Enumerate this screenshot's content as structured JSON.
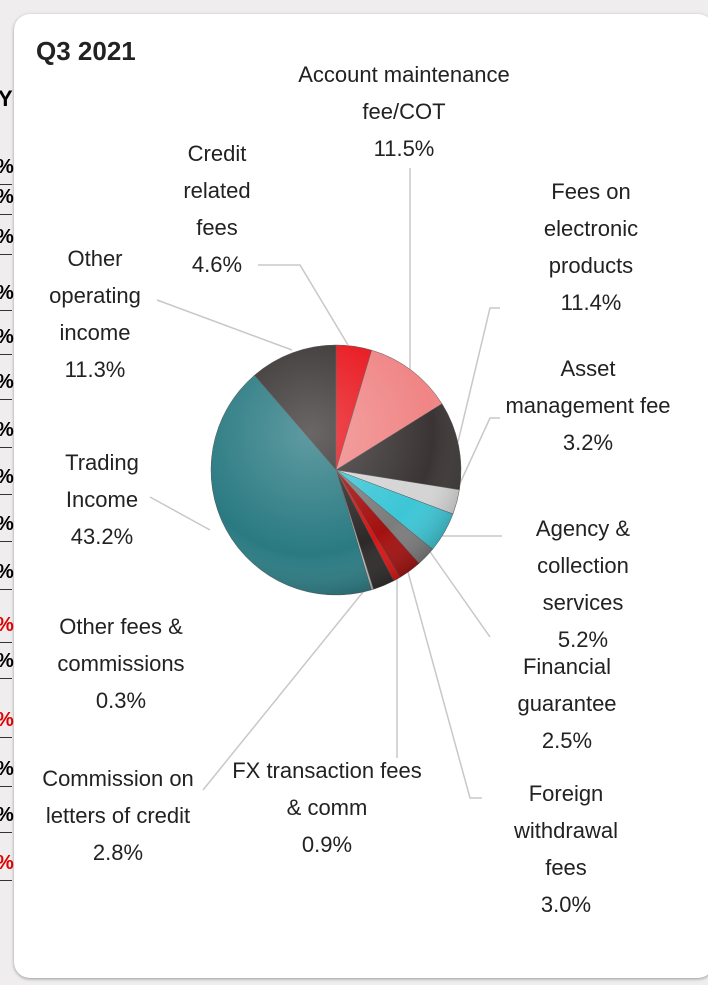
{
  "chart_data": {
    "type": "pie",
    "title": "Q3 2021",
    "categories": [
      "Credit related fees",
      "Account maintenance fee/COT",
      "Fees on electronic products",
      "Asset management fee",
      "Agency & collection services",
      "Financial guarantee",
      "Foreign withdrawal fees",
      "FX transaction fees & comm",
      "Commission on letters of credit",
      "Other fees & commissions",
      "Trading Income",
      "Other operating income"
    ],
    "values": [
      4.6,
      11.5,
      11.4,
      3.2,
      5.2,
      2.5,
      3.0,
      0.9,
      2.8,
      0.3,
      43.2,
      11.3
    ],
    "value_labels": [
      "4.6%",
      "11.5%",
      "11.4%",
      "3.2%",
      "5.2%",
      "2.5%",
      "3.0%",
      "0.9%",
      "2.8%",
      "0.3%",
      "43.2%",
      "11.3%"
    ],
    "colors": [
      "#e8151c",
      "#f08585",
      "#3a3434",
      "#d4d4d4",
      "#3cc6d6",
      "#7c7c7c",
      "#a3100f",
      "#e01111",
      "#2d2929",
      "#bdbdbd",
      "#2a7a82",
      "#3a3434"
    ]
  },
  "left_column": {
    "header": "Y",
    "cells": [
      {
        "text": "%",
        "color": "#000000"
      },
      {
        "text": "%",
        "color": "#000000"
      },
      {
        "text": "%",
        "color": "#000000"
      },
      {
        "text": "%",
        "color": "#000000"
      },
      {
        "text": "%",
        "color": "#000000"
      },
      {
        "text": "%",
        "color": "#000000"
      },
      {
        "text": "%",
        "color": "#000000"
      },
      {
        "text": "%",
        "color": "#000000"
      },
      {
        "text": "%",
        "color": "#000000"
      },
      {
        "text": "%",
        "color": "#000000"
      },
      {
        "text": "%",
        "color": "#e00000"
      },
      {
        "text": "%",
        "color": "#000000"
      },
      {
        "text": "%",
        "color": "#e00000"
      },
      {
        "text": "%",
        "color": "#000000"
      },
      {
        "text": "%",
        "color": "#000000"
      },
      {
        "text": "%",
        "color": "#e00000"
      }
    ]
  }
}
